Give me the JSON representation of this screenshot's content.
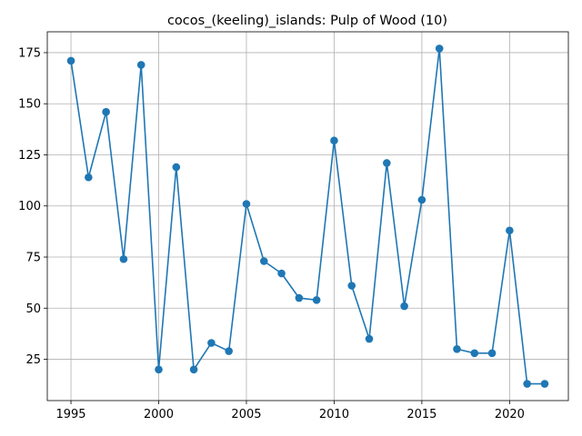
{
  "chart_data": {
    "type": "line",
    "title": "cocos_(keeling)_islands: Pulp of Wood (10)",
    "xlabel": "",
    "ylabel": "",
    "x": [
      1995,
      1996,
      1997,
      1998,
      1999,
      2000,
      2001,
      2002,
      2003,
      2004,
      2005,
      2006,
      2007,
      2008,
      2009,
      2010,
      2011,
      2012,
      2013,
      2014,
      2015,
      2016,
      2017,
      2018,
      2019,
      2020,
      2021,
      2022
    ],
    "series": [
      {
        "values": [
          171,
          114,
          146,
          74,
          169,
          20,
          119,
          20,
          33,
          29,
          101,
          73,
          67,
          55,
          54,
          132,
          61,
          35,
          121,
          51,
          103,
          177,
          30,
          28,
          28,
          88,
          13,
          13
        ],
        "color": "#1f77b4",
        "marker": "circle"
      }
    ],
    "xlim": [
      1993.65,
      2023.35
    ],
    "ylim": [
      4.8,
      185.2
    ],
    "xticks": [
      1995,
      2000,
      2005,
      2010,
      2015,
      2020
    ],
    "xtick_labels": [
      "1995",
      "2000",
      "2005",
      "2010",
      "2015",
      "2020"
    ],
    "yticks": [
      25,
      50,
      75,
      100,
      125,
      150,
      175
    ],
    "ytick_labels": [
      "25",
      "50",
      "75",
      "100",
      "125",
      "150",
      "175"
    ],
    "grid": true,
    "legend": "none"
  }
}
